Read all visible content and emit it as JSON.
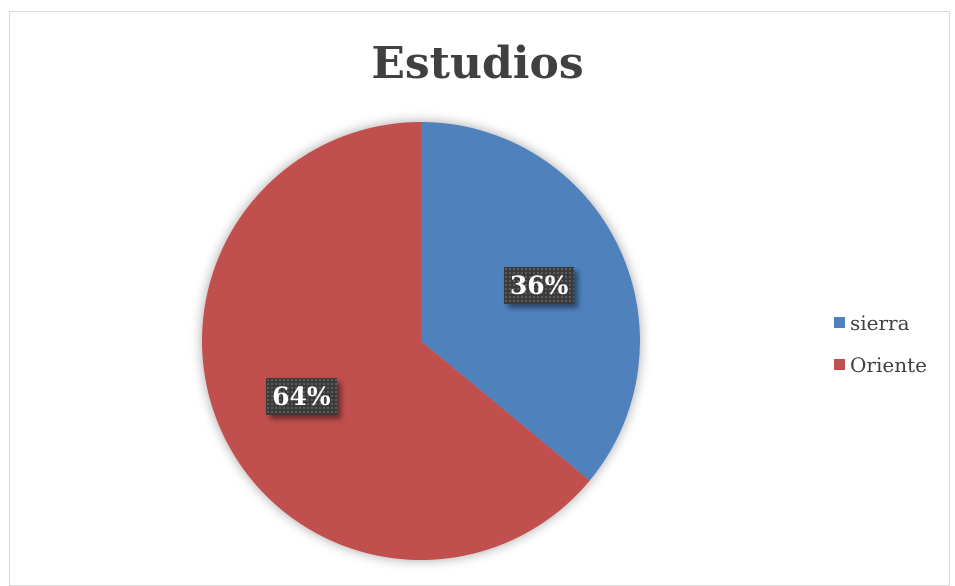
{
  "chart_data": {
    "type": "pie",
    "title": "Estudios",
    "slices": [
      {
        "label": "sierra",
        "value": 36,
        "display": "36%",
        "color": "#4f81bd"
      },
      {
        "label": "Oriente",
        "value": 64,
        "display": "64%",
        "color": "#c0504d"
      }
    ],
    "legend_position": "right"
  }
}
